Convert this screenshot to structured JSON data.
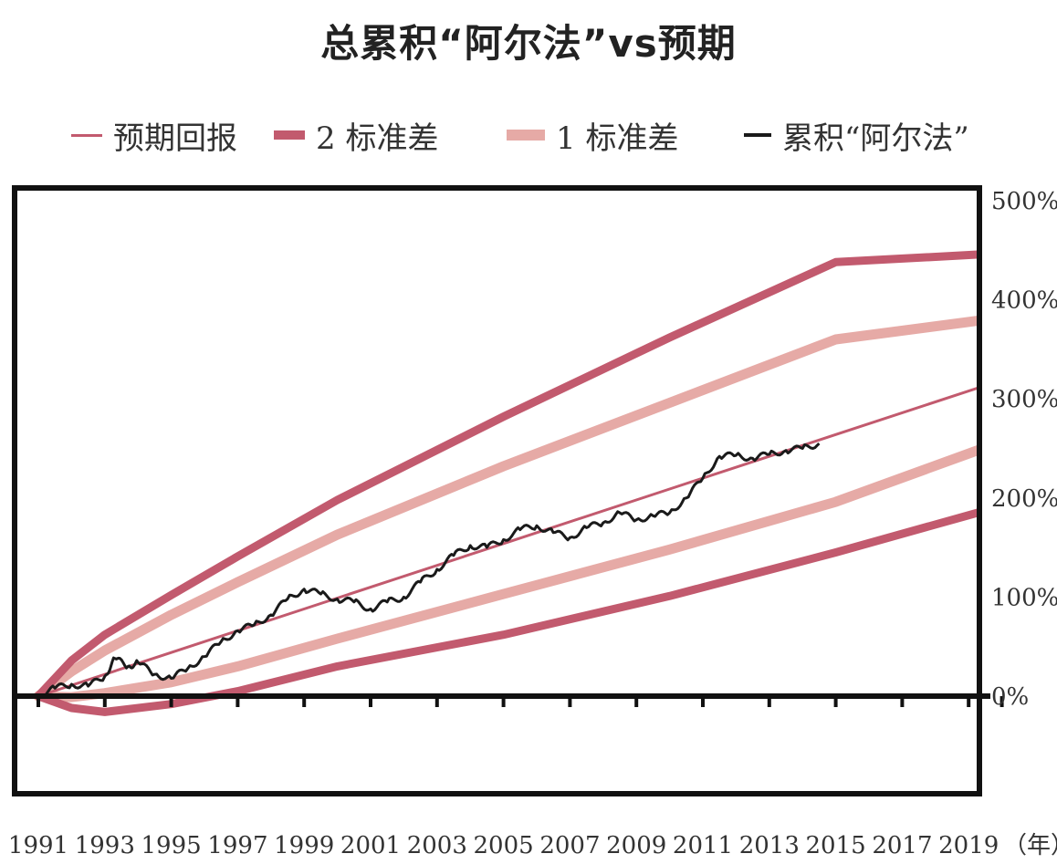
{
  "chart_data": {
    "type": "line",
    "title": "总累积“阿尔法”vs预期",
    "xlabel": "（年）",
    "ylabel": "",
    "x_ticks": [
      "1991",
      "1993",
      "1995",
      "1997",
      "1999",
      "2001",
      "2003",
      "2005",
      "2007",
      "2009",
      "2011",
      "2013",
      "2015",
      "2017",
      "2019"
    ],
    "y_ticks": [
      "0%",
      "100%",
      "200%",
      "300%",
      "400%",
      "500%"
    ],
    "xlim": [
      1991,
      2020
    ],
    "ylim": [
      -50,
      500
    ],
    "grid": false,
    "legend_position": "top",
    "series": [
      {
        "name": "预期回报",
        "color": "#c25a6e",
        "style": "thin",
        "x": [
          1991,
          1995,
          2000,
          2005,
          2010,
          2015,
          2020
        ],
        "y": [
          0,
          44,
          99,
          154,
          209,
          264,
          319
        ]
      },
      {
        "name": "2 标准差",
        "color": "#c25a6e",
        "style": "thick",
        "bands": [
          {
            "label": "upper",
            "x": [
              1991,
              1992,
              1993,
              1995,
              1997,
              2000,
              2005,
              2010,
              2015,
              2020
            ],
            "y": [
              0,
              36,
              62,
              102,
              141,
              198,
              282,
              362,
              438,
              447
            ]
          },
          {
            "label": "lower",
            "x": [
              1991,
              1992,
              1993,
              1995,
              1997,
              2000,
              2005,
              2010,
              2015,
              2020
            ],
            "y": [
              0,
              -12,
              -16,
              -8,
              5,
              30,
              62,
              101,
              145,
              192
            ]
          }
        ]
      },
      {
        "name": "1 标准差",
        "color": "#e6aaa6",
        "style": "medium",
        "bands": [
          {
            "label": "upper",
            "x": [
              1991,
              1992,
              1993,
              1995,
              1997,
              2000,
              2005,
              2010,
              2015,
              2020
            ],
            "y": [
              0,
              25,
              46,
              82,
              115,
              163,
              232,
              296,
              360,
              382
            ]
          },
          {
            "label": "lower",
            "x": [
              1991,
              1992,
              1993,
              1995,
              1997,
              2000,
              2005,
              2010,
              2015,
              2020
            ],
            "y": [
              0,
              -1,
              3,
              14,
              30,
              58,
              103,
              148,
              196,
              257
            ]
          }
        ]
      },
      {
        "name": "累积“阿尔法”",
        "color": "#1a1a1a",
        "style": "jagged",
        "x": [
          1991,
          1991.5,
          1992,
          1992.5,
          1993,
          1993.3,
          1993.7,
          1994,
          1994.5,
          1995,
          1995.5,
          1996,
          1996.5,
          1997,
          1997.5,
          1998,
          1998.5,
          1999,
          1999.5,
          2000,
          2000.5,
          2001,
          2001.5,
          2002,
          2002.5,
          2003,
          2003.5,
          2004,
          2004.5,
          2005,
          2005.5,
          2006,
          2006.5,
          2007,
          2007.5,
          2008,
          2008.5,
          2009,
          2009.5,
          2010,
          2010.5,
          2011,
          2011.5,
          2012,
          2012.5,
          2013,
          2013.5,
          2014,
          2014.5
        ],
        "y": [
          0,
          8,
          12,
          10,
          20,
          38,
          30,
          34,
          22,
          18,
          28,
          40,
          55,
          66,
          72,
          82,
          98,
          108,
          103,
          98,
          95,
          88,
          95,
          100,
          115,
          128,
          142,
          152,
          150,
          158,
          168,
          172,
          165,
          160,
          170,
          175,
          185,
          178,
          182,
          185,
          200,
          220,
          242,
          243,
          240,
          244,
          248,
          250,
          255
        ]
      }
    ]
  }
}
